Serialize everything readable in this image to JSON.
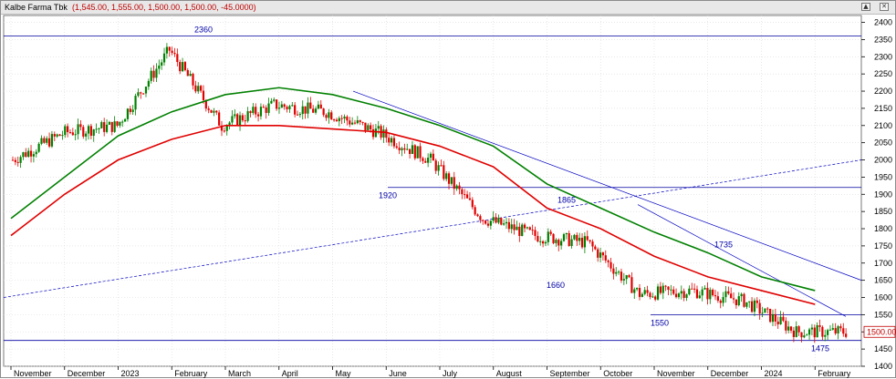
{
  "window": {
    "title": "Kalbe Farma Tbk",
    "ohlc": "(1,545.00, 1,555.00, 1,500.00, 1,500.00, -45.0000)",
    "icons": [
      "scroll-up-icon",
      "close-icon"
    ]
  },
  "chart_data": {
    "type": "candlestick",
    "title": "Kalbe Farma Tbk",
    "ylim": [
      1400,
      2420
    ],
    "y_ticks": [
      1400,
      1450,
      1500,
      1550,
      1600,
      1650,
      1700,
      1750,
      1800,
      1850,
      1900,
      1950,
      2000,
      2050,
      2100,
      2150,
      2200,
      2250,
      2300,
      2350,
      2400
    ],
    "x_tick_labels": [
      "November",
      "December",
      "2023",
      "February",
      "March",
      "April",
      "May",
      "June",
      "July",
      "August",
      "September",
      "October",
      "November",
      "December",
      "2024",
      "February"
    ],
    "last_price_label": "1500.00",
    "grid": true,
    "price_series": [
      {
        "month": "November",
        "close": 2000
      },
      {
        "month": "December",
        "close": 2080
      },
      {
        "month": "2023",
        "close": 2100
      },
      {
        "month": "February",
        "close": 2320
      },
      {
        "month": "March",
        "close": 2100
      },
      {
        "month": "April",
        "close": 2160
      },
      {
        "month": "May",
        "close": 2140
      },
      {
        "month": "June",
        "close": 2080
      },
      {
        "month": "July",
        "close": 2000
      },
      {
        "month": "August",
        "close": 1830
      },
      {
        "month": "September",
        "close": 1780
      },
      {
        "month": "October",
        "close": 1760
      },
      {
        "month": "November",
        "close": 1610
      },
      {
        "month": "December",
        "close": 1620
      },
      {
        "month": "2024",
        "close": 1590
      },
      {
        "month": "February",
        "close": 1500
      }
    ],
    "moving_averages": [
      {
        "color": "#e00000",
        "values": [
          1780,
          1900,
          2000,
          2060,
          2100,
          2100,
          2090,
          2080,
          2040,
          1980,
          1860,
          1800,
          1720,
          1660,
          1620,
          1580
        ]
      },
      {
        "color": "#008000",
        "values": [
          1830,
          1950,
          2070,
          2140,
          2190,
          2210,
          2190,
          2150,
          2100,
          2040,
          1930,
          1860,
          1790,
          1730,
          1660,
          1620
        ]
      }
    ],
    "annotations": [
      {
        "text": "2360",
        "price": 2360
      },
      {
        "text": "1920",
        "price": 1920
      },
      {
        "text": "1865",
        "price": 1865
      },
      {
        "text": "1660",
        "price": 1660
      },
      {
        "text": "1735",
        "price": 1735
      },
      {
        "text": "1550",
        "price": 1550
      },
      {
        "text": "1475",
        "price": 1475
      }
    ],
    "horizontal_levels": [
      2360,
      1920,
      1550,
      1475
    ],
    "colors": {
      "up": "#008000",
      "down": "#e00000",
      "trendline": "#0000c0",
      "grid": "#d9d9d9"
    }
  }
}
